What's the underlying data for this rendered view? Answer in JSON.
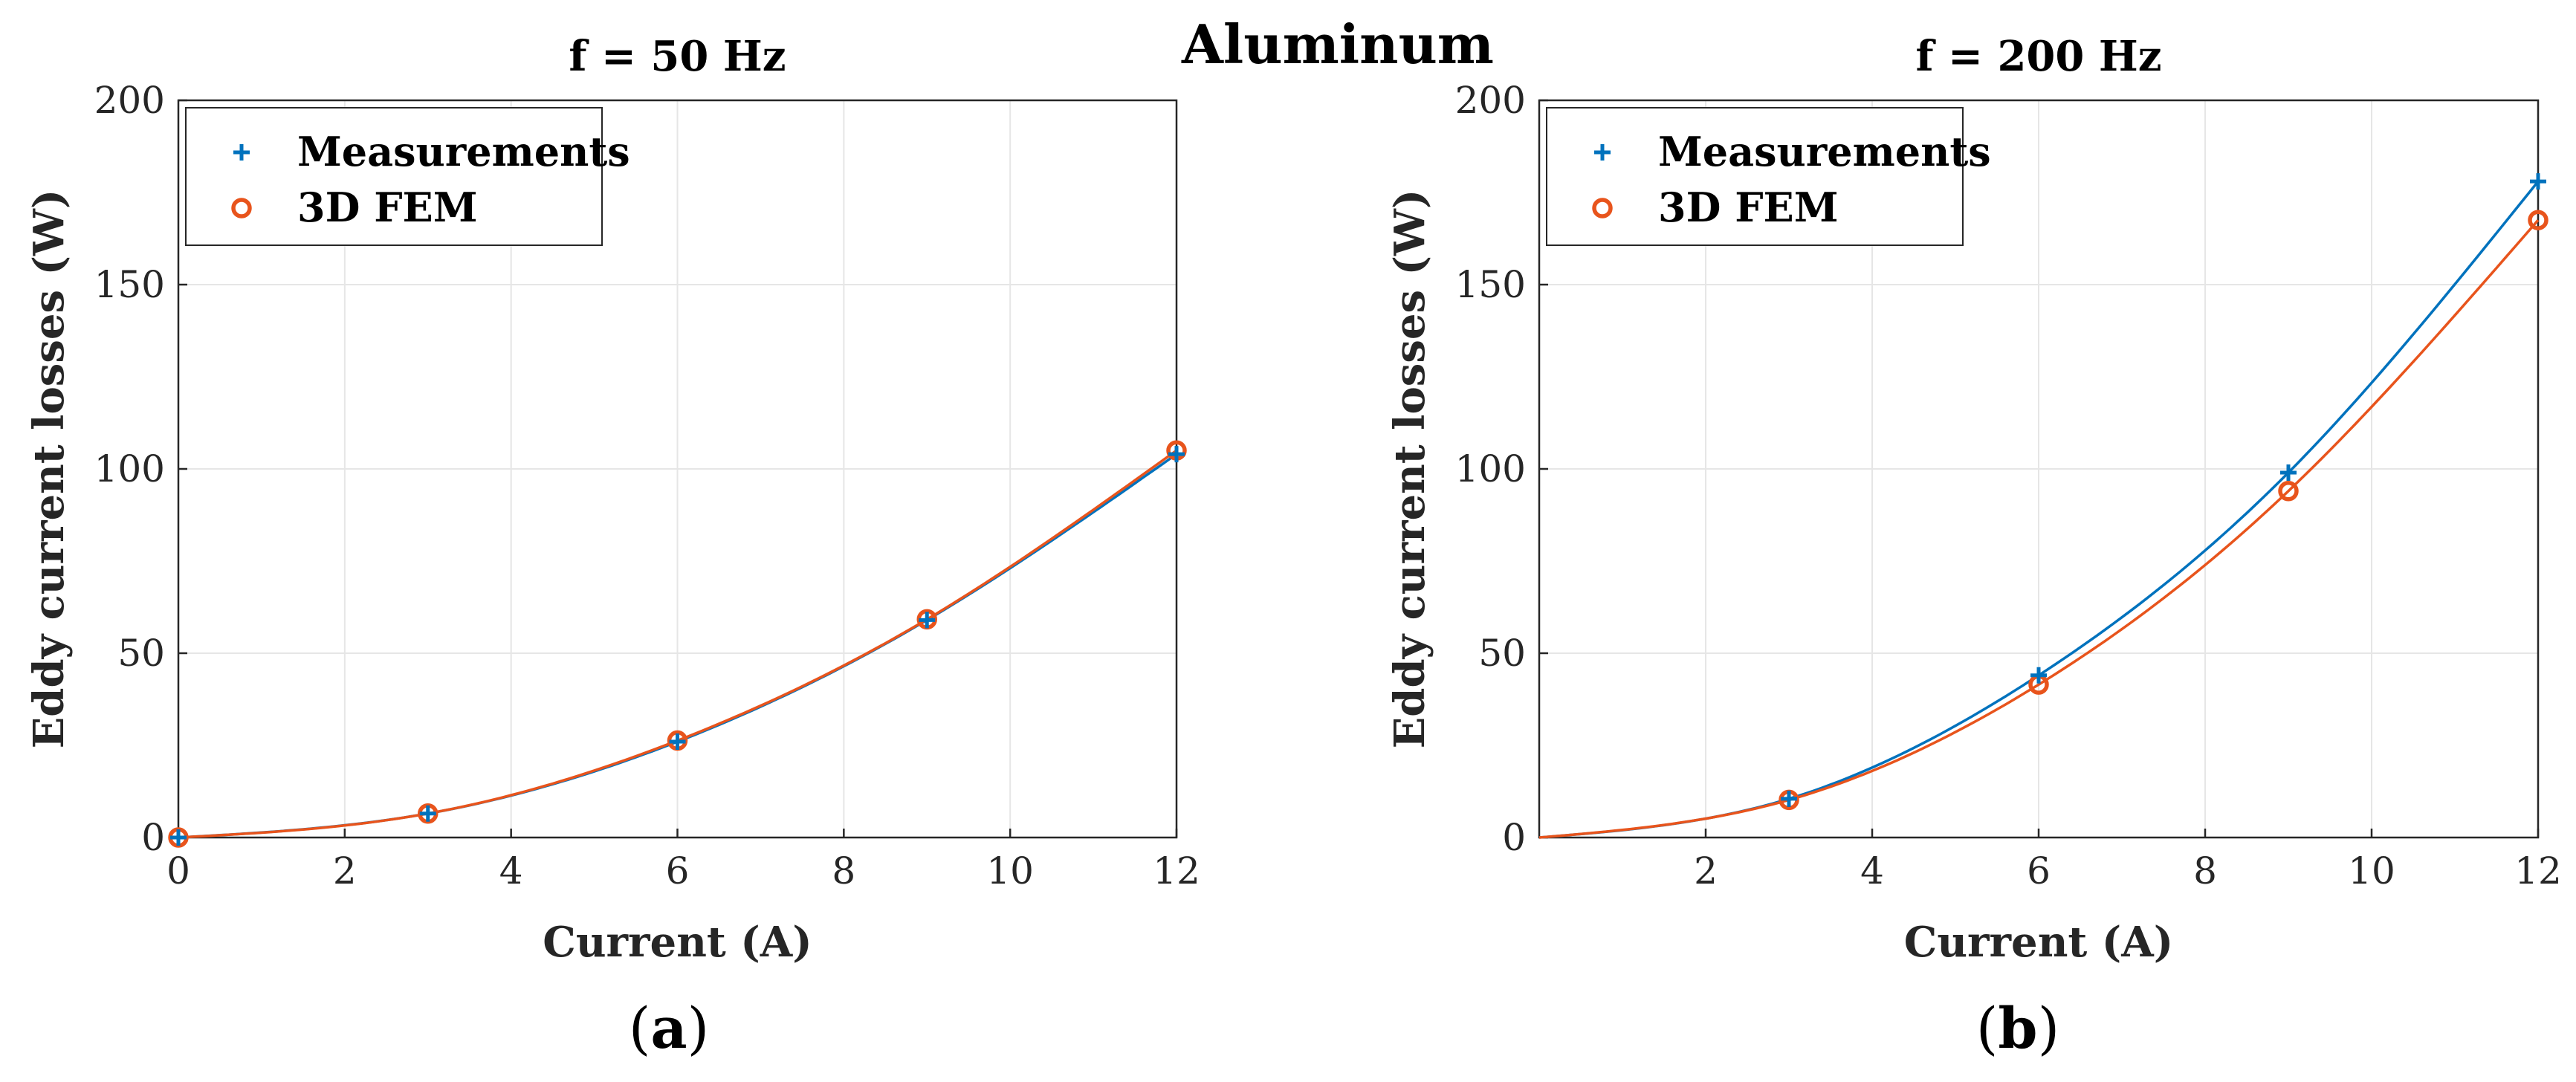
{
  "figure": {
    "suptitle": "Aluminum",
    "colors": {
      "measurements": "#0072BD",
      "fem": "#E8541C",
      "grid": "#e6e6e6",
      "axis": "#262626"
    },
    "markers": {
      "measurements": "plus",
      "fem": "open-circle"
    }
  },
  "chart_data": [
    {
      "type": "line",
      "panel": "a",
      "caption": {
        "open": "(",
        "letter": "a",
        "close": ")"
      },
      "title": "f = 50 Hz",
      "xlabel": "Current (A)",
      "ylabel": "Eddy current losses (W)",
      "xlim": [
        0,
        12
      ],
      "ylim": [
        0,
        200
      ],
      "xticks": [
        0,
        2,
        4,
        6,
        8,
        10,
        12
      ],
      "xtick_labels": [
        "0",
        "2",
        "4",
        "6",
        "8",
        "10",
        "12"
      ],
      "yticks": [
        0,
        50,
        100,
        150,
        200
      ],
      "ytick_labels": [
        "0",
        "50",
        "100",
        "150",
        "200"
      ],
      "grid": true,
      "legend_position": "top-left",
      "series": [
        {
          "name": "Measurements",
          "marker": "plus",
          "x": [
            0,
            3,
            6,
            9,
            12
          ],
          "y": [
            0,
            6.5,
            26,
            59,
            104
          ]
        },
        {
          "name": "3D FEM",
          "marker": "circle",
          "x": [
            0,
            3,
            6,
            9,
            12
          ],
          "y": [
            0,
            6.5,
            26.3,
            59.2,
            105
          ]
        }
      ]
    },
    {
      "type": "line",
      "panel": "b",
      "caption": {
        "open": "(",
        "letter": "b",
        "close": ")"
      },
      "title": "f = 200 Hz",
      "xlabel": "Current (A)",
      "ylabel": "Eddy current losses (W)",
      "xlim": [
        0,
        12
      ],
      "ylim": [
        0,
        200
      ],
      "xticks": [
        2,
        4,
        6,
        8,
        10,
        12
      ],
      "xtick_labels": [
        "2",
        "4",
        "6",
        "8",
        "10",
        "12"
      ],
      "yticks": [
        0,
        50,
        100,
        150,
        200
      ],
      "ytick_labels": [
        "0",
        "50",
        "100",
        "150",
        "200"
      ],
      "grid": true,
      "legend_position": "top-left",
      "series": [
        {
          "name": "Measurements",
          "marker": "plus",
          "x": [
            3,
            6,
            9,
            12
          ],
          "y": [
            10.5,
            44,
            99,
            178
          ]
        },
        {
          "name": "3D FEM",
          "marker": "circle",
          "x": [
            3,
            6,
            9,
            12
          ],
          "y": [
            10.2,
            41.5,
            94,
            167.5
          ]
        }
      ]
    }
  ]
}
